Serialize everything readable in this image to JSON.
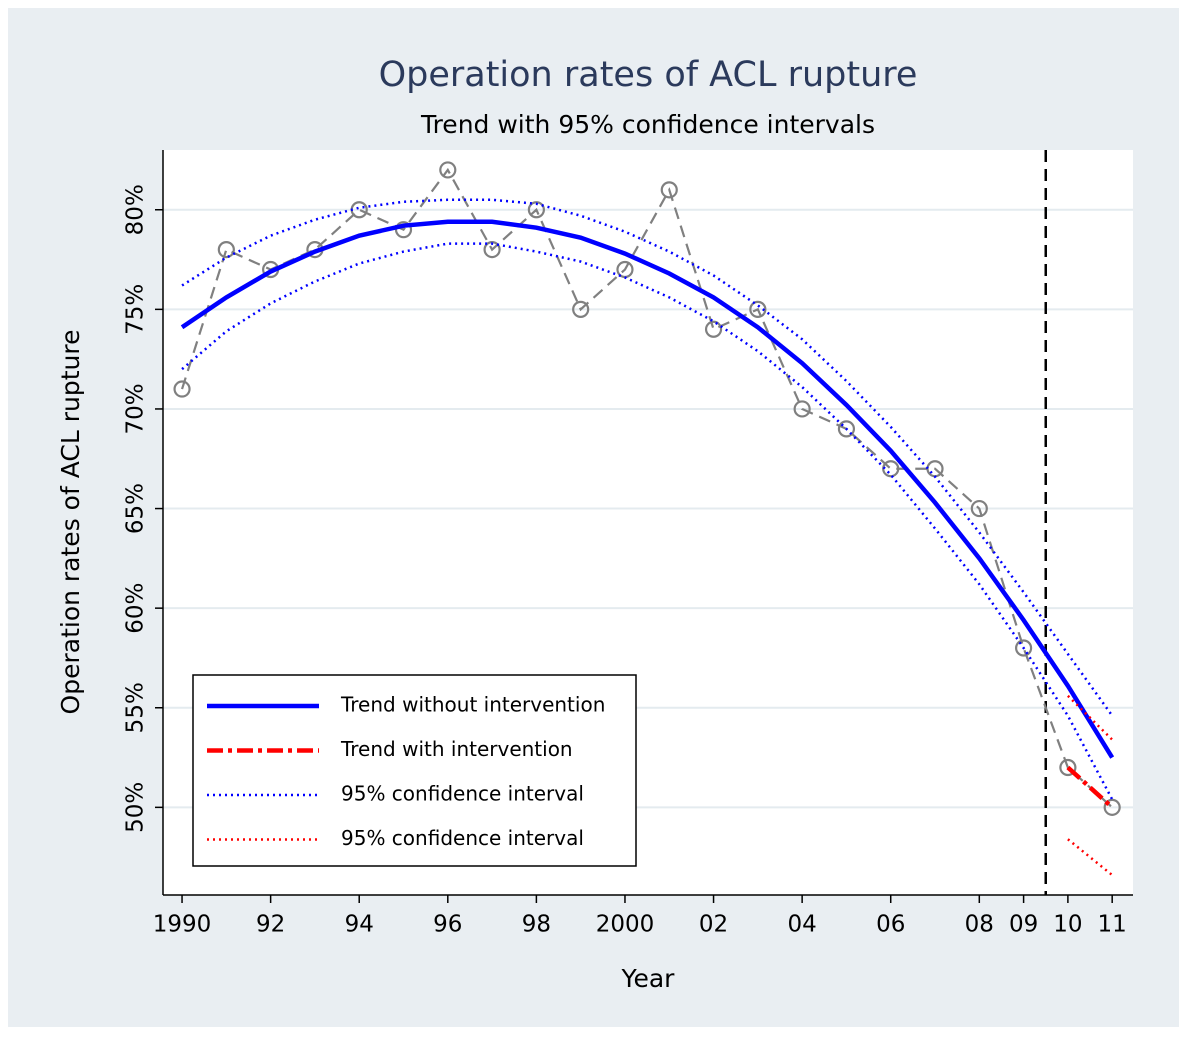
{
  "chart_data": {
    "type": "line",
    "title": "Operation rates of ACL rupture",
    "subtitle": "Trend with 95% confidence intervals",
    "x_label": "Year",
    "y_label": "Operation rates of ACL rupture",
    "x": [
      1990,
      1991,
      1992,
      1993,
      1994,
      1995,
      1996,
      1997,
      1998,
      1999,
      2000,
      2001,
      2002,
      2003,
      2004,
      2005,
      2006,
      2007,
      2008,
      2009,
      2010,
      2011
    ],
    "xlim": [
      1989.57,
      2011.47
    ],
    "ylim": [
      45.6,
      83
    ],
    "xticks": [
      1990,
      {
        "value": 1992,
        "label": "92"
      },
      {
        "value": 1994,
        "label": "94"
      },
      {
        "value": 1996,
        "label": "96"
      },
      {
        "value": 1998,
        "label": "98"
      },
      2000,
      {
        "value": 2002,
        "label": "02"
      },
      {
        "value": 2004,
        "label": "04"
      },
      {
        "value": 2006,
        "label": "06"
      },
      {
        "value": 2008,
        "label": "08"
      },
      {
        "value": 2009,
        "label": "09"
      },
      {
        "value": 2010,
        "label": "10"
      },
      {
        "value": 2011,
        "label": "11"
      }
    ],
    "yticks": [
      {
        "value": 50,
        "label": "50%"
      },
      {
        "value": 55,
        "label": "55%"
      },
      {
        "value": 60,
        "label": "60%"
      },
      {
        "value": 65,
        "label": "65%"
      },
      {
        "value": 70,
        "label": "70%"
      },
      {
        "value": 75,
        "label": "75%"
      },
      {
        "value": 80,
        "label": "80%"
      }
    ],
    "grid": true,
    "legend": "lower-left",
    "vline": {
      "x": 2009.5,
      "color": "#000000",
      "style": "dashed"
    },
    "series": [
      {
        "color": "#808080",
        "style": "dashed",
        "marker": "circle",
        "values": [
          71,
          78,
          77,
          78,
          80,
          79,
          82,
          78,
          80,
          75,
          77,
          81,
          74,
          75,
          70,
          69,
          67,
          67,
          65,
          58,
          52,
          50
        ]
      },
      {
        "name": "Trend without intervention",
        "color": "#0000ff",
        "style": "solid",
        "values": [
          74.1,
          75.6,
          76.9,
          77.9,
          78.7,
          79.2,
          79.4,
          79.4,
          79.1,
          78.6,
          77.8,
          76.8,
          75.6,
          74.1,
          72.3,
          70.2,
          67.9,
          65.3,
          62.5,
          59.4,
          56.1,
          52.5
        ]
      },
      {
        "name": "Trend with intervention",
        "color": "#ff0000",
        "style": "dashdot",
        "values": [
          null,
          null,
          null,
          null,
          null,
          null,
          null,
          null,
          null,
          null,
          null,
          null,
          null,
          null,
          null,
          null,
          null,
          null,
          null,
          null,
          52,
          50
        ]
      },
      {
        "name": "95% confidence interval",
        "color": "#0000ff",
        "style": "dotted",
        "values": [
          76.2,
          77.6,
          78.7,
          79.5,
          80.1,
          80.4,
          80.5,
          80.5,
          80.3,
          79.7,
          78.9,
          77.9,
          76.7,
          75.2,
          73.5,
          71.4,
          69.1,
          66.6,
          63.8,
          60.8,
          57.7,
          54.6
        ],
        "lower": [
          72.0,
          73.9,
          75.3,
          76.4,
          77.3,
          77.9,
          78.3,
          78.3,
          77.9,
          77.4,
          76.6,
          75.6,
          74.4,
          72.9,
          71.1,
          69.0,
          66.7,
          64.0,
          61.2,
          58.0,
          54.6,
          50.4
        ]
      },
      {
        "name": "95% confidence interval",
        "color": "#ff0000",
        "style": "dotted",
        "values": [
          null,
          null,
          null,
          null,
          null,
          null,
          null,
          null,
          null,
          null,
          null,
          null,
          null,
          null,
          null,
          null,
          null,
          null,
          null,
          null,
          55.6,
          53.4
        ],
        "lower": [
          null,
          null,
          null,
          null,
          null,
          null,
          null,
          null,
          null,
          null,
          null,
          null,
          null,
          null,
          null,
          null,
          null,
          null,
          null,
          null,
          48.4,
          46.6
        ]
      }
    ]
  }
}
